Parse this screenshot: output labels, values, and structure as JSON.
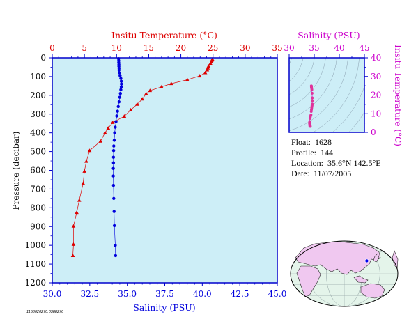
{
  "colors": {
    "temperature": "#dd0000",
    "salinity": "#0000dd",
    "ts_axis": "#cc00cc",
    "plot_bg": "#cdeef7",
    "frame": "#0000cc",
    "land": "#f0c8f0",
    "ocean": "#e4f4ea"
  },
  "info": {
    "float_label": "Float:",
    "float_value": "1628",
    "profile_label": "Profile:",
    "profile_value": "144",
    "location_label": "Location:",
    "location_value": "35.6°N  142.5°E",
    "date_label": "Date:",
    "date_value": "11/07/2005"
  },
  "footnote": "1158020270.0388276",
  "chart_data": [
    {
      "type": "line",
      "name": "profile-plot",
      "top_axis_label": "Insitu Temperature (°C)",
      "top_ticks": [
        "0",
        "5",
        "10",
        "15",
        "20",
        "25",
        "30",
        "35"
      ],
      "top_range": [
        0,
        35
      ],
      "bottom_axis_label": "Salinity (PSU)",
      "bottom_ticks": [
        "30.0",
        "32.5",
        "35.0",
        "37.5",
        "40.0",
        "42.5",
        "45.0"
      ],
      "bottom_range": [
        30,
        45
      ],
      "left_axis_label": "Pressure (decibar)",
      "left_ticks": [
        "0",
        "100",
        "200",
        "300",
        "400",
        "500",
        "600",
        "700",
        "800",
        "900",
        "1000",
        "1100",
        "1200"
      ],
      "left_range": [
        0,
        1200
      ],
      "series": [
        {
          "axis": "temperature",
          "marker": "triangle",
          "points": [
            [
              24.9,
              8
            ],
            [
              24.8,
              15
            ],
            [
              24.8,
              22
            ],
            [
              24.6,
              30
            ],
            [
              24.3,
              45
            ],
            [
              24.2,
              55
            ],
            [
              24.1,
              65
            ],
            [
              23.8,
              80
            ],
            [
              22.9,
              97
            ],
            [
              21.0,
              117
            ],
            [
              18.5,
              138
            ],
            [
              17.0,
              155
            ],
            [
              15.2,
              175
            ],
            [
              14.6,
              192
            ],
            [
              14.0,
              220
            ],
            [
              13.2,
              248
            ],
            [
              12.2,
              278
            ],
            [
              11.2,
              312
            ],
            [
              9.4,
              345
            ],
            [
              8.7,
              375
            ],
            [
              8.2,
              400
            ],
            [
              7.5,
              445
            ],
            [
              5.8,
              495
            ],
            [
              5.3,
              552
            ],
            [
              5.0,
              605
            ],
            [
              4.8,
              670
            ],
            [
              4.2,
              760
            ],
            [
              3.8,
              825
            ],
            [
              3.3,
              898
            ],
            [
              3.3,
              995
            ],
            [
              3.2,
              1055
            ]
          ]
        },
        {
          "axis": "salinity",
          "marker": "circle",
          "points": [
            [
              34.42,
              5
            ],
            [
              34.43,
              15
            ],
            [
              34.43,
              25
            ],
            [
              34.44,
              35
            ],
            [
              34.44,
              45
            ],
            [
              34.45,
              55
            ],
            [
              34.45,
              65
            ],
            [
              34.47,
              80
            ],
            [
              34.52,
              95
            ],
            [
              34.57,
              110
            ],
            [
              34.6,
              125
            ],
            [
              34.61,
              140
            ],
            [
              34.6,
              155
            ],
            [
              34.57,
              170
            ],
            [
              34.54,
              190
            ],
            [
              34.5,
              210
            ],
            [
              34.45,
              235
            ],
            [
              34.4,
              260
            ],
            [
              34.35,
              285
            ],
            [
              34.3,
              310
            ],
            [
              34.25,
              340
            ],
            [
              34.2,
              370
            ],
            [
              34.16,
              400
            ],
            [
              34.13,
              440
            ],
            [
              34.1,
              470
            ],
            [
              34.09,
              495
            ],
            [
              34.08,
              530
            ],
            [
              34.08,
              560
            ],
            [
              34.07,
              590
            ],
            [
              34.07,
              630
            ],
            [
              34.08,
              680
            ],
            [
              34.1,
              750
            ],
            [
              34.12,
              820
            ],
            [
              34.14,
              895
            ],
            [
              34.2,
              1000
            ],
            [
              34.22,
              1055
            ]
          ]
        }
      ]
    },
    {
      "type": "scatter",
      "name": "ts-diagram",
      "top_axis_label": "Salinity (PSU)",
      "top_ticks": [
        "30",
        "35",
        "40",
        "45"
      ],
      "x_range": [
        30,
        45
      ],
      "right_axis_label": "Insitu Temperature (°C)",
      "right_ticks": [
        "0",
        "10",
        "20",
        "30",
        "40"
      ],
      "y_range": [
        0,
        40
      ],
      "points": [
        [
          34.42,
          24.9
        ],
        [
          34.43,
          24.8
        ],
        [
          34.44,
          24.6
        ],
        [
          34.45,
          24.2
        ],
        [
          34.47,
          23.8
        ],
        [
          34.52,
          22.9
        ],
        [
          34.57,
          21.0
        ],
        [
          34.6,
          18.5
        ],
        [
          34.61,
          17.0
        ],
        [
          34.6,
          15.2
        ],
        [
          34.57,
          14.6
        ],
        [
          34.54,
          14.0
        ],
        [
          34.5,
          13.2
        ],
        [
          34.45,
          12.2
        ],
        [
          34.4,
          11.2
        ],
        [
          34.35,
          9.4
        ],
        [
          34.25,
          8.7
        ],
        [
          34.2,
          8.2
        ],
        [
          34.16,
          7.5
        ],
        [
          34.1,
          5.8
        ],
        [
          34.09,
          5.3
        ],
        [
          34.08,
          5.0
        ],
        [
          34.07,
          4.8
        ],
        [
          34.1,
          4.2
        ],
        [
          34.12,
          3.8
        ],
        [
          34.14,
          3.3
        ],
        [
          34.2,
          3.3
        ],
        [
          34.22,
          3.2
        ]
      ]
    },
    {
      "type": "map",
      "name": "location-map",
      "marker": {
        "lat": 35.6,
        "lon": 142.5
      }
    }
  ]
}
